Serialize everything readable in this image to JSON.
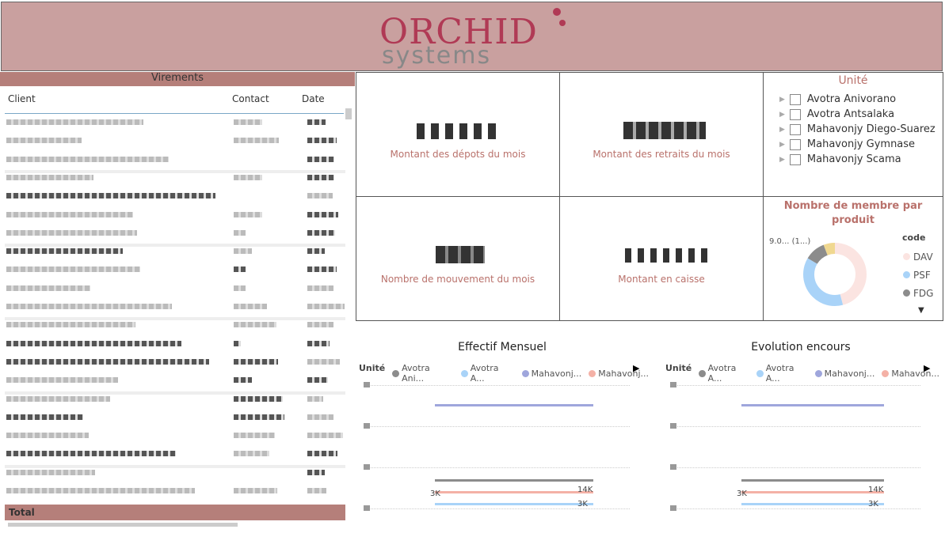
{
  "header": {
    "logo_top": "ORCHID",
    "logo_bottom": "systems"
  },
  "table": {
    "title": "Virements",
    "columns": [
      "Client",
      "Contact",
      "Date"
    ],
    "total": "Total"
  },
  "cards": [
    "Montant des dépots du mois",
    "Montant des retraits du mois",
    "Nombre de mouvement du mois",
    "Montant en caisse"
  ],
  "slicer": {
    "title": "Unité",
    "items": [
      "Avotra Anivorano",
      "Avotra Antsalaka",
      "Mahavonjy Diego-Suarez",
      "Mahavonjy Gymnase",
      "Mahavonjy Scama"
    ]
  },
  "donut": {
    "title": "Nombre de membre par produit",
    "label": "9.0... (1...)",
    "legend_title": "code",
    "legend": [
      "DAV",
      "PSF",
      "FDG"
    ]
  },
  "charts": [
    {
      "title": "Effectif Mensuel",
      "legend_title": "Unité",
      "legend": [
        "Avotra Ani...",
        "Avotra A...",
        "Mahavonj...",
        "Mahavonj..."
      ],
      "labels": [
        "14K",
        "3K"
      ]
    },
    {
      "title": "Evolution encours",
      "legend_title": "Unité",
      "legend": [
        "Avotra A...",
        "Avotra A...",
        "Mahavonj...",
        "Mahavon..."
      ],
      "labels": [
        "14K",
        "3K"
      ]
    }
  ]
}
